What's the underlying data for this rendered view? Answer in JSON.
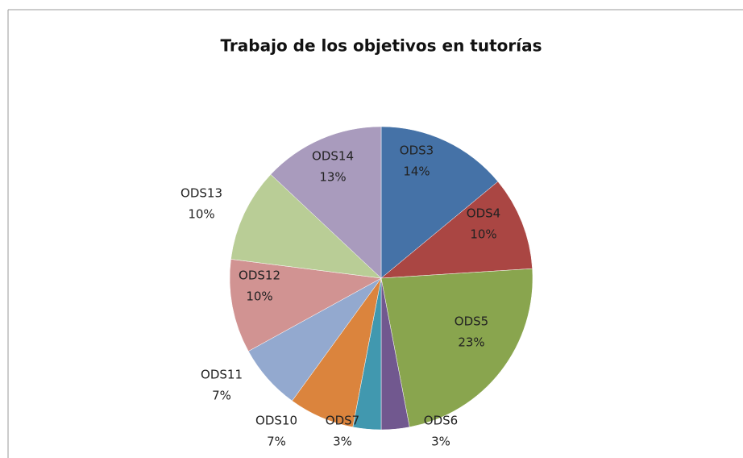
{
  "chart_data": {
    "type": "pie",
    "title": "Trabajo de los objetivos en tutorías",
    "categories": [
      "ODS3",
      "ODS4",
      "ODS5",
      "ODS6",
      "ODS7",
      "ODS10",
      "ODS11",
      "ODS12",
      "ODS13",
      "ODS14"
    ],
    "values": [
      14,
      10,
      23,
      3,
      3,
      7,
      7,
      10,
      10,
      13
    ],
    "value_labels": [
      "14%",
      "10%",
      "23%",
      "3%",
      "3%",
      "7%",
      "7%",
      "10%",
      "10%",
      "13%"
    ],
    "colors": [
      "#4572A7",
      "#AA4643",
      "#89A54E",
      "#71588F",
      "#4198AF",
      "#DB843D",
      "#93A9CF",
      "#D19392",
      "#B9CD96",
      "#A99BBD"
    ]
  }
}
